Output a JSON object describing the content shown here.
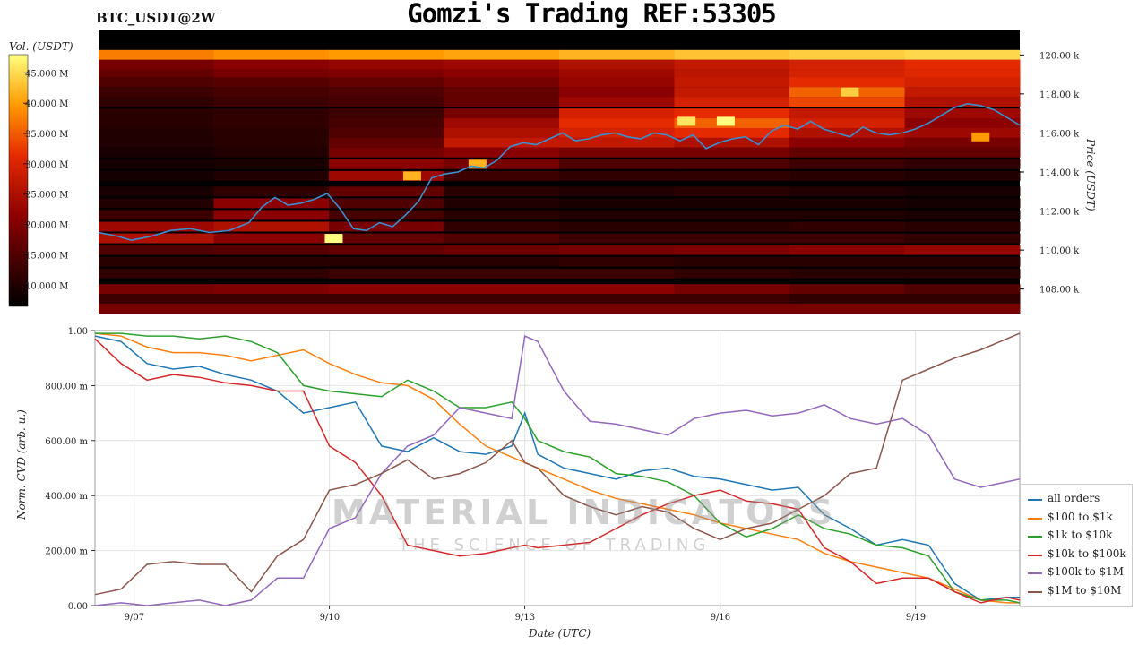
{
  "header": {
    "symbol": "BTC_USDT@2W",
    "title": "Gomzi's Trading REF:53305"
  },
  "watermark": {
    "line1": "MATERIAL INDICATORS",
    "line2": "THE SCIENCE OF TRADING"
  },
  "colors": {
    "all_orders": "#1f77b4",
    "s100_1k": "#ff7f0e",
    "s1k_10k": "#2ca02c",
    "s10k_100k": "#d62728",
    "s100k_1m": "#9467bd",
    "s1m_10m": "#8c564b",
    "heat_bg": "#000000",
    "price_line": "#3a8fd0"
  },
  "chart_data": [
    {
      "type": "heatmap",
      "title": "Gomzi's Trading REF:53305",
      "ylabel": "Price (USDT)",
      "colorbar_label": "Vol. (USDT)",
      "colorbar_ticks": [
        "10.000 M",
        "15.000 M",
        "20.000 M",
        "25.000 M",
        "30.000 M",
        "35.000 M",
        "40.000 M",
        "45.000 M"
      ],
      "colorbar_values": [
        10,
        15,
        20,
        25,
        30,
        35,
        40,
        45
      ],
      "colorbar_range": [
        6.5,
        48
      ],
      "y_ticks": [
        "108.00 k",
        "110.00 k",
        "112.00 k",
        "114.00 k",
        "116.00 k",
        "118.00 k",
        "120.00 k"
      ],
      "y_values": [
        108000,
        110000,
        112000,
        114000,
        116000,
        118000,
        120000
      ],
      "ylim": [
        106700,
        121300
      ],
      "x_range_days": [
        6.5,
        20.6
      ],
      "price": {
        "x": [
          6.5,
          6.8,
          7.0,
          7.3,
          7.6,
          7.9,
          8.2,
          8.5,
          8.8,
          9.0,
          9.2,
          9.4,
          9.6,
          9.8,
          10.0,
          10.2,
          10.4,
          10.6,
          10.8,
          11.0,
          11.2,
          11.4,
          11.6,
          11.8,
          12.0,
          12.2,
          12.4,
          12.6,
          12.8,
          13.0,
          13.2,
          13.4,
          13.6,
          13.8,
          14.0,
          14.2,
          14.4,
          14.6,
          14.8,
          15.0,
          15.2,
          15.4,
          15.6,
          15.8,
          16.0,
          16.2,
          16.4,
          16.6,
          16.8,
          17.0,
          17.2,
          17.4,
          17.6,
          17.8,
          18.0,
          18.2,
          18.4,
          18.6,
          18.8,
          19.0,
          19.2,
          19.4,
          19.6,
          19.8,
          20.0,
          20.2,
          20.4,
          20.6
        ],
        "y": [
          110900,
          110700,
          110500,
          110700,
          111000,
          111100,
          110900,
          111000,
          111400,
          112200,
          112700,
          112300,
          112400,
          112600,
          112900,
          112100,
          111100,
          111000,
          111400,
          111200,
          111800,
          112500,
          113700,
          113900,
          114000,
          114300,
          114200,
          114600,
          115300,
          115500,
          115400,
          115700,
          116000,
          115600,
          115700,
          115900,
          116000,
          115800,
          115700,
          116000,
          115900,
          115600,
          115900,
          115200,
          115500,
          115700,
          115800,
          115400,
          116100,
          116400,
          116200,
          116600,
          116200,
          116000,
          115800,
          116300,
          116000,
          115900,
          116000,
          116200,
          116500,
          116900,
          117300,
          117500,
          117400,
          117200,
          116800,
          116400
        ]
      },
      "bands": [
        {
          "price": 120000,
          "intensity": [
            0.75,
            0.78,
            0.8,
            0.82,
            0.85,
            0.88,
            0.9,
            0.92
          ]
        },
        {
          "price": 119500,
          "intensity": [
            0.3,
            0.35,
            0.38,
            0.4,
            0.45,
            0.5,
            0.55,
            0.6
          ]
        },
        {
          "price": 119000,
          "intensity": [
            0.25,
            0.3,
            0.32,
            0.35,
            0.4,
            0.48,
            0.55,
            0.58
          ]
        },
        {
          "price": 118600,
          "intensity": [
            0.2,
            0.22,
            0.25,
            0.3,
            0.38,
            0.5,
            0.6,
            0.55
          ]
        },
        {
          "price": 118100,
          "intensity": [
            0.15,
            0.18,
            0.2,
            0.25,
            0.35,
            0.5,
            0.7,
            0.5
          ]
        },
        {
          "price": 117600,
          "intensity": [
            0.12,
            0.15,
            0.18,
            0.25,
            0.4,
            0.55,
            0.65,
            0.45
          ]
        },
        {
          "price": 117000,
          "intensity": [
            0.1,
            0.12,
            0.15,
            0.3,
            0.55,
            0.6,
            0.5,
            0.4
          ]
        },
        {
          "price": 116500,
          "intensity": [
            0.1,
            0.12,
            0.18,
            0.4,
            0.6,
            0.7,
            0.55,
            0.35
          ]
        },
        {
          "price": 116000,
          "intensity": [
            0.08,
            0.1,
            0.2,
            0.45,
            0.55,
            0.6,
            0.45,
            0.4
          ]
        },
        {
          "price": 115500,
          "intensity": [
            0.08,
            0.1,
            0.25,
            0.5,
            0.5,
            0.45,
            0.35,
            0.3
          ]
        },
        {
          "price": 115000,
          "intensity": [
            0.06,
            0.08,
            0.3,
            0.35,
            0.3,
            0.3,
            0.25,
            0.25
          ]
        },
        {
          "price": 114400,
          "intensity": [
            0.05,
            0.06,
            0.35,
            0.3,
            0.2,
            0.2,
            0.15,
            0.12
          ]
        },
        {
          "price": 113800,
          "intensity": [
            0.05,
            0.08,
            0.4,
            0.15,
            0.12,
            0.12,
            0.1,
            0.08
          ]
        },
        {
          "price": 113000,
          "intensity": [
            0.06,
            0.12,
            0.25,
            0.1,
            0.08,
            0.1,
            0.08,
            0.06
          ]
        },
        {
          "price": 112400,
          "intensity": [
            0.08,
            0.35,
            0.2,
            0.08,
            0.06,
            0.06,
            0.06,
            0.05
          ]
        },
        {
          "price": 111800,
          "intensity": [
            0.15,
            0.35,
            0.18,
            0.1,
            0.08,
            0.08,
            0.08,
            0.06
          ]
        },
        {
          "price": 111200,
          "intensity": [
            0.4,
            0.45,
            0.3,
            0.12,
            0.1,
            0.1,
            0.12,
            0.1
          ]
        },
        {
          "price": 110600,
          "intensity": [
            0.45,
            0.35,
            0.25,
            0.2,
            0.15,
            0.15,
            0.15,
            0.12
          ]
        },
        {
          "price": 110000,
          "intensity": [
            0.2,
            0.22,
            0.25,
            0.28,
            0.3,
            0.32,
            0.35,
            0.38
          ]
        },
        {
          "price": 109400,
          "intensity": [
            0.1,
            0.1,
            0.1,
            0.1,
            0.12,
            0.1,
            0.1,
            0.1
          ]
        },
        {
          "price": 108800,
          "intensity": [
            0.12,
            0.12,
            0.15,
            0.15,
            0.15,
            0.12,
            0.1,
            0.1
          ]
        },
        {
          "price": 108000,
          "intensity": [
            0.3,
            0.32,
            0.35,
            0.35,
            0.35,
            0.3,
            0.25,
            0.2
          ]
        },
        {
          "price": 107500,
          "intensity": [
            0.15,
            0.15,
            0.15,
            0.15,
            0.15,
            0.15,
            0.12,
            0.12
          ]
        },
        {
          "price": 107000,
          "intensity": [
            0.3,
            0.3,
            0.3,
            0.3,
            0.3,
            0.3,
            0.3,
            0.3
          ]
        }
      ],
      "hotspots": [
        {
          "x": 10.1,
          "price": 110600,
          "level": 1.0
        },
        {
          "x": 15.5,
          "price": 116600,
          "level": 0.95
        },
        {
          "x": 16.1,
          "price": 116600,
          "level": 1.0
        },
        {
          "x": 18.0,
          "price": 118100,
          "level": 0.9
        },
        {
          "x": 12.3,
          "price": 114400,
          "level": 0.85
        },
        {
          "x": 20.0,
          "price": 115800,
          "level": 0.8
        },
        {
          "x": 11.3,
          "price": 113800,
          "level": 0.85
        }
      ]
    },
    {
      "type": "line",
      "xlabel": "Date (UTC)",
      "ylabel": "Norm. CVD (arb. u.)",
      "xlim": [
        6.4,
        20.6
      ],
      "ylim": [
        0,
        1
      ],
      "x_ticks": [
        "9/07",
        "9/10",
        "9/13",
        "9/16",
        "9/19"
      ],
      "x_tick_values": [
        7,
        10,
        13,
        16,
        19
      ],
      "y_ticks": [
        "0.00",
        "200.00 m",
        "400.00 m",
        "600.00 m",
        "800.00 m",
        "1.00"
      ],
      "y_tick_values": [
        0,
        0.2,
        0.4,
        0.6,
        0.8,
        1.0
      ],
      "x": [
        6.4,
        6.8,
        7.2,
        7.6,
        8.0,
        8.4,
        8.8,
        9.2,
        9.6,
        10.0,
        10.4,
        10.8,
        11.2,
        11.6,
        12.0,
        12.4,
        12.8,
        13.0,
        13.2,
        13.6,
        14.0,
        14.4,
        14.8,
        15.2,
        15.6,
        16.0,
        16.4,
        16.8,
        17.2,
        17.6,
        18.0,
        18.4,
        18.8,
        19.2,
        19.6,
        20.0,
        20.4,
        20.6
      ],
      "series": [
        {
          "name": "all orders",
          "color_key": "all_orders",
          "values": [
            0.98,
            0.96,
            0.88,
            0.86,
            0.87,
            0.84,
            0.82,
            0.78,
            0.7,
            0.72,
            0.74,
            0.58,
            0.56,
            0.61,
            0.56,
            0.55,
            0.58,
            0.7,
            0.55,
            0.5,
            0.48,
            0.46,
            0.49,
            0.5,
            0.47,
            0.46,
            0.44,
            0.42,
            0.43,
            0.33,
            0.28,
            0.22,
            0.24,
            0.22,
            0.08,
            0.02,
            0.03,
            0.03
          ]
        },
        {
          "name": "$100 to $1k",
          "color_key": "s100_1k",
          "values": [
            0.99,
            0.98,
            0.94,
            0.92,
            0.92,
            0.91,
            0.89,
            0.91,
            0.93,
            0.88,
            0.84,
            0.81,
            0.8,
            0.75,
            0.66,
            0.58,
            0.54,
            0.52,
            0.5,
            0.46,
            0.42,
            0.39,
            0.37,
            0.35,
            0.33,
            0.3,
            0.28,
            0.26,
            0.24,
            0.19,
            0.16,
            0.14,
            0.12,
            0.1,
            0.06,
            0.02,
            0.01,
            0.01
          ]
        },
        {
          "name": "$1k to $10k",
          "color_key": "s1k_10k",
          "values": [
            0.99,
            0.99,
            0.98,
            0.98,
            0.97,
            0.98,
            0.96,
            0.92,
            0.8,
            0.78,
            0.77,
            0.76,
            0.82,
            0.78,
            0.72,
            0.72,
            0.74,
            0.68,
            0.6,
            0.56,
            0.54,
            0.48,
            0.47,
            0.45,
            0.4,
            0.3,
            0.25,
            0.28,
            0.33,
            0.28,
            0.26,
            0.22,
            0.21,
            0.18,
            0.05,
            0.02,
            0.02,
            0.01
          ]
        },
        {
          "name": "$10k to $100k",
          "color_key": "s10k_100k",
          "values": [
            0.97,
            0.88,
            0.82,
            0.84,
            0.83,
            0.81,
            0.8,
            0.78,
            0.78,
            0.58,
            0.52,
            0.4,
            0.22,
            0.2,
            0.18,
            0.19,
            0.21,
            0.22,
            0.21,
            0.22,
            0.23,
            0.28,
            0.33,
            0.37,
            0.4,
            0.42,
            0.38,
            0.37,
            0.35,
            0.21,
            0.16,
            0.08,
            0.1,
            0.1,
            0.05,
            0.01,
            0.03,
            0.02
          ]
        },
        {
          "name": "$100k to $1M",
          "color_key": "s100k_1m",
          "values": [
            0.0,
            0.01,
            0.0,
            0.01,
            0.02,
            0.0,
            0.02,
            0.1,
            0.1,
            0.28,
            0.32,
            0.48,
            0.58,
            0.62,
            0.72,
            0.7,
            0.68,
            0.98,
            0.96,
            0.78,
            0.67,
            0.66,
            0.64,
            0.62,
            0.68,
            0.7,
            0.71,
            0.69,
            0.7,
            0.73,
            0.68,
            0.66,
            0.68,
            0.62,
            0.46,
            0.43,
            0.45,
            0.46
          ]
        },
        {
          "name": "$1M to $10M",
          "color_key": "s1m_10m",
          "values": [
            0.04,
            0.06,
            0.15,
            0.16,
            0.15,
            0.15,
            0.05,
            0.18,
            0.24,
            0.42,
            0.44,
            0.48,
            0.53,
            0.46,
            0.48,
            0.52,
            0.6,
            0.52,
            0.5,
            0.4,
            0.36,
            0.33,
            0.36,
            0.34,
            0.28,
            0.24,
            0.28,
            0.3,
            0.35,
            0.4,
            0.48,
            0.5,
            0.82,
            0.86,
            0.9,
            0.93,
            0.97,
            0.99
          ]
        }
      ]
    }
  ]
}
